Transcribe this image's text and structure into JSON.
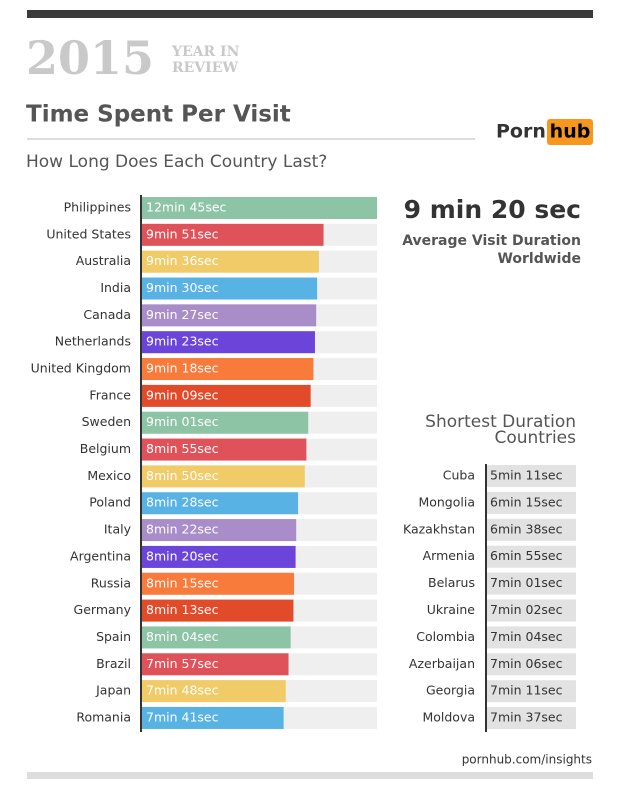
{
  "header": {
    "year": "2015",
    "badge": [
      "YEAR IN",
      "REVIEW"
    ],
    "title": "Time Spent Per Visit",
    "logo": [
      "Porn",
      "hub"
    ]
  },
  "chart_data": {
    "type": "bar",
    "orientation": "horizontal",
    "subtitle": "How Long Does Each Country Last?",
    "categories": [
      "Philippines",
      "United States",
      "Australia",
      "India",
      "Canada",
      "Netherlands",
      "United Kingdom",
      "France",
      "Sweden",
      "Belgium",
      "Mexico",
      "Poland",
      "Italy",
      "Argentina",
      "Russia",
      "Germany",
      "Spain",
      "Brazil",
      "Japan",
      "Romania"
    ],
    "values": [
      765,
      591,
      576,
      570,
      567,
      563,
      558,
      549,
      541,
      535,
      530,
      508,
      502,
      500,
      495,
      493,
      484,
      477,
      468,
      461
    ],
    "value_labels": [
      "12min 45sec",
      "9min 51sec",
      "9min 36sec",
      "9min 30sec",
      "9min 27sec",
      "9min 23sec",
      "9min 18sec",
      "9min 09sec",
      "9min 01sec",
      "8min 55sec",
      "8min 50sec",
      "8min 28sec",
      "8min 22sec",
      "8min 20sec",
      "8min 15sec",
      "8min 13sec",
      "8min 04sec",
      "7min 57sec",
      "7min 48sec",
      "7min 41sec"
    ],
    "colors": [
      "#8ec4a6",
      "#e0525a",
      "#f1cb68",
      "#58b3e4",
      "#a88dc9",
      "#6b45d9",
      "#f87b3b",
      "#e24b2a"
    ]
  },
  "average": {
    "value": "9 min 20 sec",
    "label": [
      "Average Visit Duration",
      "Worldwide"
    ]
  },
  "shortest": {
    "title": [
      "Shortest Duration",
      "Countries"
    ],
    "rows": [
      [
        "Cuba",
        "5min 11sec"
      ],
      [
        "Mongolia",
        "6min 15sec"
      ],
      [
        "Kazakhstan",
        "6min 38sec"
      ],
      [
        "Armenia",
        "6min 55sec"
      ],
      [
        "Belarus",
        "7min 01sec"
      ],
      [
        "Ukraine",
        "7min 02sec"
      ],
      [
        "Colombia",
        "7min 04sec"
      ],
      [
        "Azerbaijan",
        "7min 06sec"
      ],
      [
        "Georgia",
        "7min 11sec"
      ],
      [
        "Moldova",
        "7min 37sec"
      ]
    ]
  },
  "footer": "pornhub.com/insights"
}
